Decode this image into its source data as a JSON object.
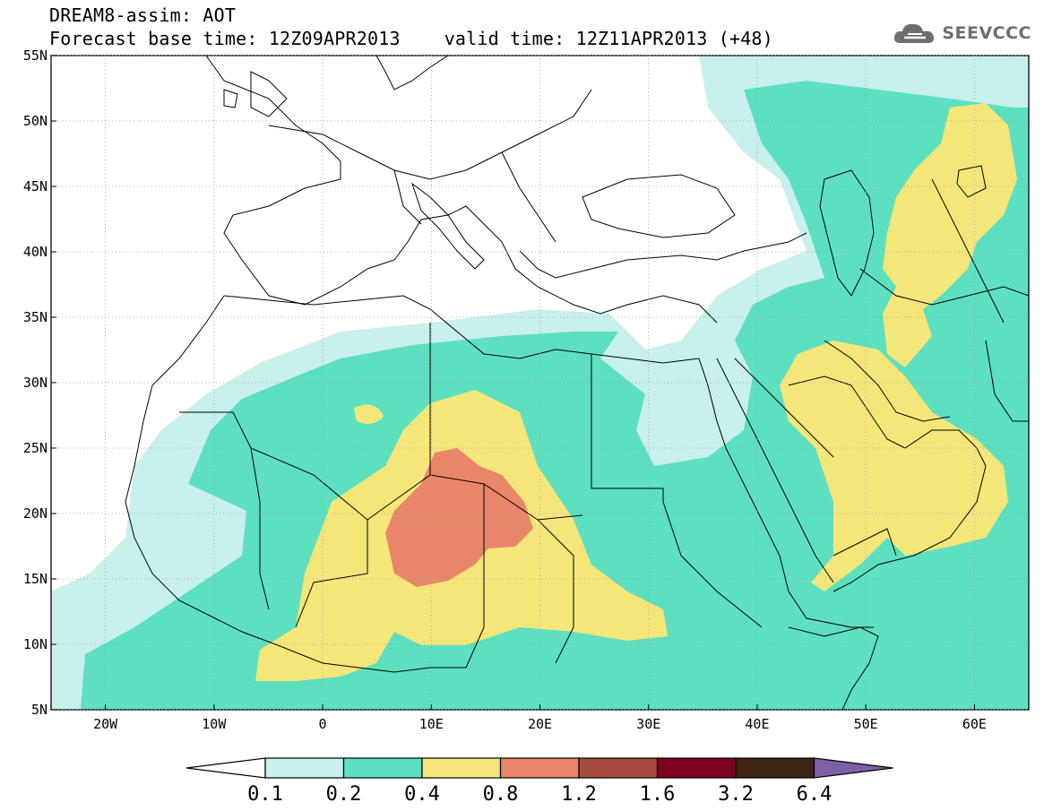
{
  "header": {
    "title": "DREAM8-assim: AOT",
    "base_time_label": "Forecast base time: 12Z09APR2013",
    "valid_time_label": "valid time: 12Z11APR2013 (+48)"
  },
  "logo": {
    "text": "SEEVCCC",
    "icon": "cloud-icon"
  },
  "map": {
    "lat_labels": [
      "55N",
      "50N",
      "45N",
      "40N",
      "35N",
      "30N",
      "25N",
      "20N",
      "15N",
      "10N",
      "5N"
    ],
    "lon_labels": [
      "20W",
      "10W",
      "0",
      "10E",
      "20E",
      "30E",
      "40E",
      "50E",
      "60E"
    ],
    "lat_range": [
      5,
      55
    ],
    "lon_range": [
      -25,
      65
    ],
    "lat_values": [
      55,
      50,
      45,
      40,
      35,
      30,
      25,
      20,
      15,
      10,
      5
    ],
    "lon_values": [
      -20,
      -10,
      0,
      10,
      20,
      30,
      40,
      50,
      60
    ]
  },
  "colorbar": {
    "labels": [
      "0.1",
      "0.2",
      "0.4",
      "0.8",
      "1.2",
      "1.6",
      "3.2",
      "6.4"
    ],
    "colors": [
      "#c8f0ec",
      "#5de0c0",
      "#f5e67a",
      "#e9876a",
      "#a64b3e",
      "#7d0020",
      "#3d2415",
      "#7e60a6"
    ],
    "under_color": "#ffffff"
  }
}
